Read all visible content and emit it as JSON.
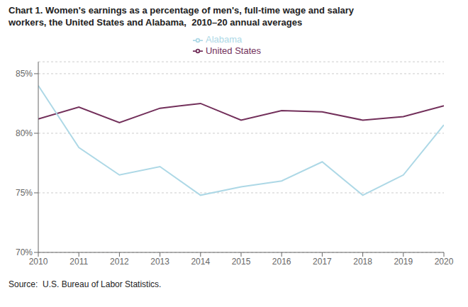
{
  "chart_data": {
    "type": "line",
    "title": "Chart 1. Women's earnings as a percentage of men's, full-time wage and salary\nworkers, the United States and Alabama,  2010–20 annual averages",
    "source": "Source:  U.S. Bureau of Labor Statistics.",
    "x": [
      2010,
      2011,
      2012,
      2013,
      2014,
      2015,
      2016,
      2017,
      2018,
      2019,
      2020
    ],
    "series": [
      {
        "name": "United States",
        "color": "#722F5A",
        "values": [
          81.2,
          82.2,
          80.9,
          82.1,
          82.5,
          81.1,
          81.9,
          81.8,
          81.1,
          81.4,
          82.3
        ]
      },
      {
        "name": "Alabama",
        "color": "#ADD8E6",
        "values": [
          84.0,
          78.8,
          76.5,
          77.2,
          74.8,
          75.5,
          76.0,
          77.6,
          74.8,
          76.5,
          80.7
        ]
      }
    ],
    "xlim": [
      2010,
      2020
    ],
    "xticks": [
      2010,
      2011,
      2012,
      2013,
      2014,
      2015,
      2016,
      2017,
      2018,
      2019,
      2020
    ],
    "ylim": [
      70,
      86
    ],
    "yticks": [
      {
        "value": 70,
        "label": "70%"
      },
      {
        "value": 75,
        "label": "75%"
      },
      {
        "value": 80,
        "label": "80%"
      },
      {
        "value": 85,
        "label": "85%"
      }
    ],
    "grid": true,
    "legend": "top"
  }
}
